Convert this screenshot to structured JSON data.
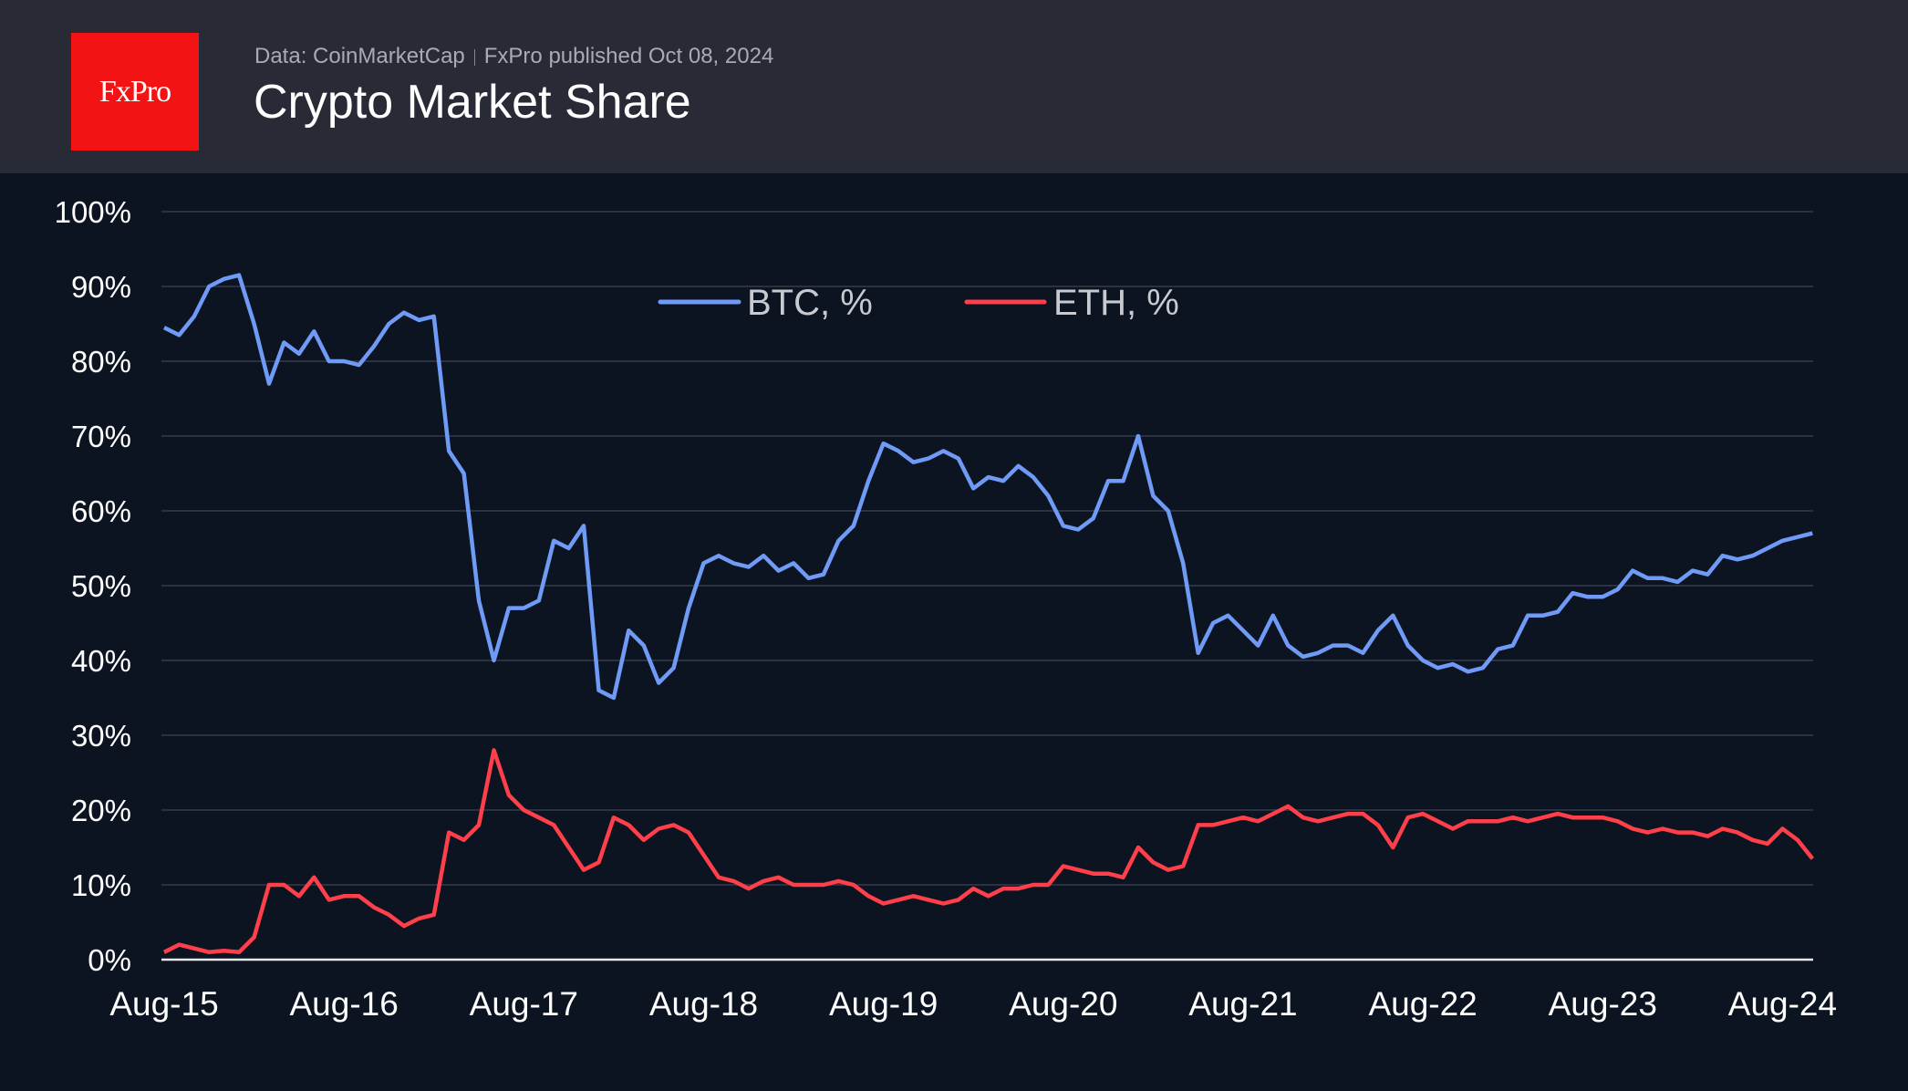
{
  "header": {
    "logo_text": "FxPro",
    "source": "Data: CoinMarketCap",
    "published": "FxPro published Oct 08, 2024",
    "title": "Crypto Market Share"
  },
  "colors": {
    "btc": "#6f9bf7",
    "eth": "#ff3f4a",
    "header_bg": "#282a36",
    "chart_bg": "#0c1321",
    "logo_bg": "#f41314"
  },
  "chart_data": {
    "type": "line",
    "title": "Crypto Market Share",
    "xlabel": "",
    "ylabel": "",
    "ylim": [
      0,
      100
    ],
    "grid": true,
    "legend_position": "top-center",
    "y_ticks": [
      "0%",
      "10%",
      "20%",
      "30%",
      "40%",
      "50%",
      "60%",
      "70%",
      "80%",
      "90%",
      "100%"
    ],
    "x_ticks": [
      "Aug-15",
      "Aug-16",
      "Aug-17",
      "Aug-18",
      "Aug-19",
      "Aug-20",
      "Aug-21",
      "Aug-22",
      "Aug-23",
      "Aug-24"
    ],
    "x_start": "2015-08",
    "x_interval": "monthly",
    "series": [
      {
        "name": "BTC, %",
        "color": "#6f9bf7",
        "values": [
          84.5,
          83.5,
          86,
          90,
          91,
          91.5,
          85,
          77,
          82.5,
          81,
          84,
          80,
          80,
          79.5,
          82,
          85,
          86.5,
          85.5,
          86,
          68,
          65,
          48,
          40,
          47,
          47,
          48,
          56,
          55,
          58,
          36,
          35,
          44,
          42,
          37,
          39,
          47,
          53,
          54,
          53,
          52.5,
          54,
          52,
          53,
          51,
          51.5,
          56,
          58,
          64,
          69,
          68,
          66.5,
          67,
          68,
          67,
          63,
          64.5,
          64,
          66,
          64.5,
          62,
          58,
          57.5,
          59,
          64,
          64,
          70,
          62,
          60,
          53,
          41,
          45,
          46,
          44,
          42,
          46,
          42,
          40.5,
          41,
          42,
          42,
          41,
          44,
          46,
          42,
          40,
          39,
          39.5,
          38.5,
          39,
          41.5,
          42,
          46,
          46,
          46.5,
          49,
          48.5,
          48.5,
          49.5,
          52,
          51,
          51,
          50.5,
          52,
          51.5,
          54,
          53.5,
          54,
          55,
          56,
          56.5,
          57
        ]
      },
      {
        "name": "ETH, %",
        "color": "#ff3f4a",
        "values": [
          1,
          2,
          1.5,
          1,
          1.2,
          1,
          3,
          10,
          10,
          8.5,
          11,
          8,
          8.5,
          8.5,
          7,
          6,
          4.5,
          5.5,
          6,
          17,
          16,
          18,
          28,
          22,
          20,
          19,
          18,
          15,
          12,
          13,
          19,
          18,
          16,
          17.5,
          18,
          17,
          14,
          11,
          10.5,
          9.5,
          10.5,
          11,
          10,
          10,
          10,
          10.5,
          10,
          8.5,
          7.5,
          8,
          8.5,
          8,
          7.5,
          8,
          9.5,
          8.5,
          9.5,
          9.5,
          10,
          10,
          12.5,
          12,
          11.5,
          11.5,
          11,
          15,
          13,
          12,
          12.5,
          18,
          18,
          18.5,
          19,
          18.5,
          19.5,
          20.5,
          19,
          18.5,
          19,
          19.5,
          19.5,
          18,
          15,
          19,
          19.5,
          18.5,
          17.5,
          18.5,
          18.5,
          18.5,
          19,
          18.5,
          19,
          19.5,
          19,
          19,
          19,
          18.5,
          17.5,
          17,
          17.5,
          17,
          17,
          16.5,
          17.5,
          17,
          16,
          15.5,
          17.5,
          16,
          13.5
        ]
      }
    ]
  }
}
